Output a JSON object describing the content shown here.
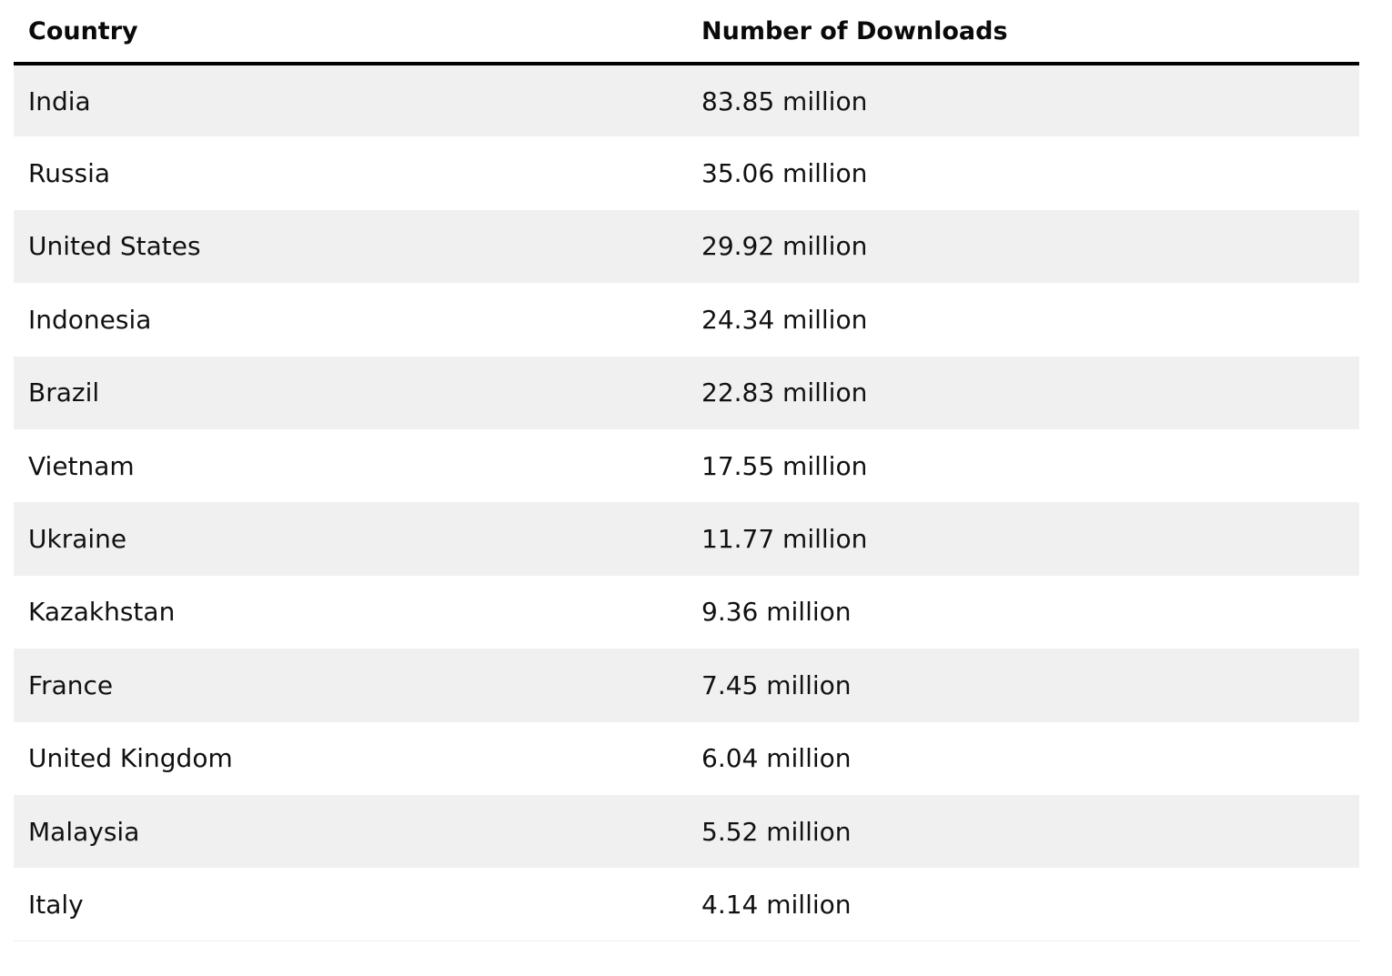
{
  "table": {
    "headers": {
      "country": "Country",
      "downloads": "Number of Downloads"
    },
    "rows": [
      {
        "country": "India",
        "downloads": "83.85 million"
      },
      {
        "country": "Russia",
        "downloads": "35.06 million"
      },
      {
        "country": "United States",
        "downloads": "29.92 million"
      },
      {
        "country": "Indonesia",
        "downloads": "24.34 million"
      },
      {
        "country": "Brazil",
        "downloads": "22.83 million"
      },
      {
        "country": "Vietnam",
        "downloads": "17.55 million"
      },
      {
        "country": "Ukraine",
        "downloads": "11.77 million"
      },
      {
        "country": "Kazakhstan",
        "downloads": "9.36 million"
      },
      {
        "country": "France",
        "downloads": "7.45 million"
      },
      {
        "country": "United Kingdom",
        "downloads": "6.04 million"
      },
      {
        "country": "Malaysia",
        "downloads": "5.52 million"
      },
      {
        "country": "Italy",
        "downloads": "4.14 million"
      }
    ]
  },
  "colors": {
    "stripe": "#f0f0f0",
    "header_rule": "#000000",
    "text": "#111111"
  }
}
